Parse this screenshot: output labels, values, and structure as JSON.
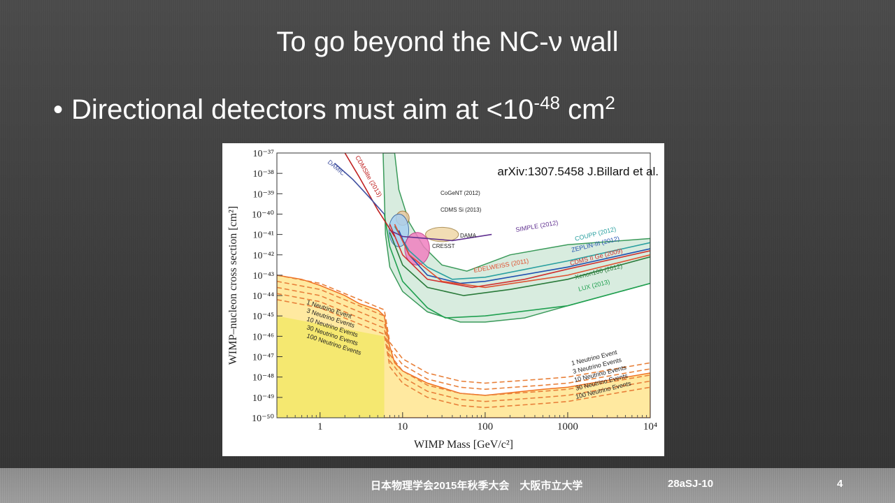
{
  "slide": {
    "title": "To go beyond the NC-ν wall",
    "bullet": {
      "symbol": "•",
      "text_before": "Directional detectors must aim at <10",
      "exponent": "-48",
      "text_mid": " cm",
      "unit_exponent": "2"
    }
  },
  "footer": {
    "conference": "日本物理学会2015年秋季大会　大阪市立大学",
    "code": "28aSJ-10",
    "page": "4"
  },
  "chart_data": {
    "type": "line",
    "title": "",
    "annotation": "arXiv:1307.5458 J.Billard  et al.",
    "xlabel": "WIMP Mass [GeV/c²]",
    "ylabel": "WIMP–nucleon cross section [cm²]",
    "x_scale": "log",
    "y_scale": "log",
    "xlim": [
      0.3,
      10000
    ],
    "ylim": [
      1e-50,
      1e-37
    ],
    "x_ticks": [
      {
        "v": 1,
        "label": "1"
      },
      {
        "v": 10,
        "label": "10"
      },
      {
        "v": 100,
        "label": "100"
      },
      {
        "v": 1000,
        "label": "1000"
      },
      {
        "v": 10000,
        "label": "10⁴"
      }
    ],
    "y_ticks": [
      {
        "e": -37,
        "label": "10⁻³⁷"
      },
      {
        "e": -38,
        "label": "10⁻³⁸"
      },
      {
        "e": -39,
        "label": "10⁻³⁹"
      },
      {
        "e": -40,
        "label": "10⁻⁴⁰"
      },
      {
        "e": -41,
        "label": "10⁻⁴¹"
      },
      {
        "e": -42,
        "label": "10⁻⁴²"
      },
      {
        "e": -43,
        "label": "10⁻⁴³"
      },
      {
        "e": -44,
        "label": "10⁻⁴⁴"
      },
      {
        "e": -45,
        "label": "10⁻⁴⁵"
      },
      {
        "e": -46,
        "label": "10⁻⁴⁶"
      },
      {
        "e": -47,
        "label": "10⁻⁴⁷"
      },
      {
        "e": -48,
        "label": "10⁻⁴⁸"
      },
      {
        "e": -49,
        "label": "10⁻⁴⁹"
      },
      {
        "e": -50,
        "label": "10⁻⁵⁰"
      }
    ],
    "regions": [
      {
        "name": "",
        "color": "#d8ecdf",
        "stroke": "#3a9a5a",
        "points": [
          [
            5.8,
            -37
          ],
          [
            6.2,
            -41
          ],
          [
            7,
            -42.6
          ],
          [
            10,
            -43.8
          ],
          [
            20,
            -44.8
          ],
          [
            50,
            -45.3
          ],
          [
            100,
            -45.3
          ],
          [
            300,
            -45.1
          ],
          [
            1000,
            -44.5
          ],
          [
            10000,
            -43.4
          ],
          [
            10000,
            -41.2
          ],
          [
            1000,
            -41.5
          ],
          [
            200,
            -42
          ],
          [
            60,
            -42.8
          ],
          [
            30,
            -42.5
          ],
          [
            18,
            -41.6
          ],
          [
            12,
            -40.4
          ],
          [
            9,
            -38.8
          ],
          [
            8,
            -37
          ]
        ]
      },
      {
        "name": "",
        "color": "#ffe9a0",
        "stroke": "#f07020",
        "solar": true,
        "points": [
          [
            0.3,
            -43
          ],
          [
            0.6,
            -43.2
          ],
          [
            1,
            -43.5
          ],
          [
            2,
            -44
          ],
          [
            3,
            -44.4
          ],
          [
            5,
            -44.7
          ],
          [
            6,
            -45
          ],
          [
            7,
            -46.5
          ],
          [
            8,
            -47.3
          ],
          [
            10,
            -47.7
          ],
          [
            20,
            -48.3
          ],
          [
            50,
            -48.8
          ],
          [
            100,
            -48.9
          ],
          [
            500,
            -48.6
          ],
          [
            1000,
            -48.5
          ],
          [
            10000,
            -47.8
          ],
          [
            10000,
            -50
          ],
          [
            0.3,
            -50
          ]
        ]
      }
    ],
    "series": [
      {
        "name": "",
        "label": "1 Neutrino Event",
        "color": "#e8803a",
        "dashed": true,
        "points": [
          [
            0.3,
            -43.0
          ],
          [
            1,
            -43.4
          ],
          [
            3,
            -44.2
          ],
          [
            6,
            -44.7
          ],
          [
            7,
            -46.3
          ],
          [
            10,
            -47.1
          ],
          [
            20,
            -47.8
          ],
          [
            50,
            -48.2
          ],
          [
            100,
            -48.3
          ],
          [
            500,
            -48.1
          ],
          [
            1000,
            -48.0
          ],
          [
            10000,
            -47.3
          ]
        ]
      },
      {
        "name": "",
        "label": "3 Neutrino Events",
        "color": "#e8803a",
        "dashed": true,
        "points": [
          [
            0.3,
            -43.3
          ],
          [
            1,
            -43.7
          ],
          [
            3,
            -44.5
          ],
          [
            6,
            -45.0
          ],
          [
            7,
            -46.6
          ],
          [
            10,
            -47.4
          ],
          [
            20,
            -48.1
          ],
          [
            50,
            -48.5
          ],
          [
            100,
            -48.6
          ],
          [
            500,
            -48.4
          ],
          [
            1000,
            -48.3
          ],
          [
            10000,
            -47.6
          ]
        ]
      },
      {
        "name": "",
        "label": "10 Neutrino Events",
        "color": "#e8803a",
        "dashed": true,
        "points": [
          [
            0.3,
            -43.6
          ],
          [
            1,
            -44.0
          ],
          [
            3,
            -44.8
          ],
          [
            6,
            -45.3
          ],
          [
            7,
            -46.9
          ],
          [
            10,
            -47.7
          ],
          [
            20,
            -48.4
          ],
          [
            50,
            -48.8
          ],
          [
            100,
            -48.9
          ],
          [
            500,
            -48.7
          ],
          [
            1000,
            -48.6
          ],
          [
            10000,
            -47.9
          ]
        ]
      },
      {
        "name": "",
        "label": "30 Neutrino Events",
        "color": "#e8803a",
        "dashed": true,
        "points": [
          [
            0.3,
            -43.9
          ],
          [
            1,
            -44.3
          ],
          [
            3,
            -45.1
          ],
          [
            6,
            -45.6
          ],
          [
            7,
            -47.2
          ],
          [
            10,
            -48.0
          ],
          [
            20,
            -48.7
          ],
          [
            50,
            -49.1
          ],
          [
            100,
            -49.2
          ],
          [
            500,
            -49.0
          ],
          [
            1000,
            -48.9
          ],
          [
            10000,
            -48.2
          ]
        ]
      },
      {
        "name": "",
        "label": "100 Neutrino Events",
        "color": "#e8803a",
        "dashed": true,
        "points": [
          [
            0.3,
            -44.2
          ],
          [
            1,
            -44.6
          ],
          [
            3,
            -45.4
          ],
          [
            6,
            -45.9
          ],
          [
            7,
            -47.5
          ],
          [
            10,
            -48.3
          ],
          [
            20,
            -49.0
          ],
          [
            50,
            -49.4
          ],
          [
            100,
            -49.5
          ],
          [
            500,
            -49.3
          ],
          [
            1000,
            -49.2
          ],
          [
            10000,
            -48.5
          ]
        ]
      },
      {
        "name": "",
        "label": "COUPP (2012)",
        "color": "#2aa0a0",
        "points": [
          [
            8,
            -40.6
          ],
          [
            12,
            -41.8
          ],
          [
            20,
            -42.6
          ],
          [
            40,
            -43.2
          ],
          [
            100,
            -43.1
          ],
          [
            1000,
            -42.3
          ],
          [
            10000,
            -41.4
          ]
        ]
      },
      {
        "name": "",
        "label": "ZEPLIN-III (2012)",
        "color": "#2050b0",
        "points": [
          [
            9,
            -40.8
          ],
          [
            12,
            -42
          ],
          [
            20,
            -43
          ],
          [
            50,
            -43.4
          ],
          [
            100,
            -43.3
          ],
          [
            1000,
            -42.6
          ],
          [
            10000,
            -41.7
          ]
        ]
      },
      {
        "name": "",
        "label": "CDMS II Ge (2009)",
        "color": "#d03030",
        "points": [
          [
            7,
            -40.5
          ],
          [
            10,
            -42
          ],
          [
            20,
            -43.2
          ],
          [
            70,
            -43.6
          ],
          [
            300,
            -43.2
          ],
          [
            1000,
            -42.7
          ],
          [
            10000,
            -41.8
          ]
        ]
      },
      {
        "name": "",
        "label": "Xenon100 (2012)",
        "color": "#2a7a3a",
        "points": [
          [
            7,
            -40.9
          ],
          [
            10,
            -42.5
          ],
          [
            20,
            -43.6
          ],
          [
            55,
            -44
          ],
          [
            200,
            -43.7
          ],
          [
            1000,
            -43.2
          ],
          [
            10000,
            -42.1
          ]
        ]
      },
      {
        "name": "",
        "label": "EDELWEISS (2011)",
        "color": "#e05030",
        "points": [
          [
            8,
            -40.5
          ],
          [
            12,
            -42
          ],
          [
            30,
            -43.3
          ],
          [
            100,
            -43.6
          ],
          [
            1000,
            -43
          ],
          [
            10000,
            -42
          ]
        ]
      },
      {
        "name": "",
        "label": "LUX (2013)",
        "color": "#20a050",
        "points": [
          [
            6,
            -40
          ],
          [
            7,
            -41.6
          ],
          [
            10,
            -43.3
          ],
          [
            20,
            -44.6
          ],
          [
            33,
            -45.1
          ],
          [
            100,
            -45
          ],
          [
            1000,
            -44.5
          ],
          [
            10000,
            -43.4
          ]
        ]
      },
      {
        "name": "",
        "label": "SIMPLE (2012)",
        "color": "#603090",
        "points": [
          [
            7,
            -40.8
          ],
          [
            10,
            -41.1
          ],
          [
            20,
            -41.2
          ],
          [
            40,
            -41.3
          ],
          [
            120,
            -41
          ]
        ]
      },
      {
        "name": "",
        "label": "CDMSlite (2013)",
        "color": "#c02020",
        "points": [
          [
            2,
            -37
          ],
          [
            3,
            -38.2
          ],
          [
            5,
            -39.8
          ],
          [
            8,
            -41.1
          ]
        ]
      },
      {
        "name": "",
        "label": "DAMIC",
        "color": "#4050a0",
        "points": [
          [
            1.5,
            -37.5
          ],
          [
            2.5,
            -38.3
          ],
          [
            4,
            -39.2
          ],
          [
            6,
            -40
          ]
        ]
      }
    ],
    "blobs": [
      {
        "label": "CoGeNT (2012)",
        "color": "#e8c8a0",
        "stroke": "#a07030",
        "cx": 10,
        "cy": -40.2,
        "rx": 0.08,
        "ry": 0.35
      },
      {
        "label": "CDMS Si (2013)",
        "color": "#a8d0f0",
        "stroke": "#3060a0",
        "cx": 9,
        "cy": -40.8,
        "rx": 0.12,
        "ry": 0.8
      },
      {
        "label": "DAMA",
        "color": "#f0d8a8",
        "stroke": "#a08040",
        "cx": 30,
        "cy": -41,
        "rx": 0.2,
        "ry": 0.35
      },
      {
        "label": "CRESST",
        "color": "#f080c0",
        "stroke": "#c03080",
        "cx": 15,
        "cy": -41.7,
        "rx": 0.15,
        "ry": 0.8
      }
    ],
    "grid": false,
    "legend": "none"
  }
}
